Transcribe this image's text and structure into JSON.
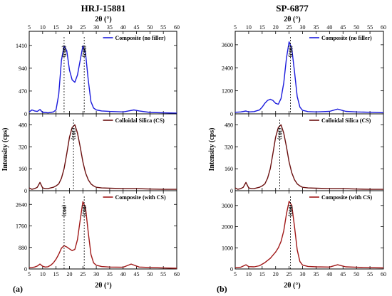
{
  "chart_data": [
    {
      "type": "line",
      "title": "HRJ-15881",
      "panel_label": "(a)",
      "xlabel": "2θ (°)",
      "ylabel": "Intensity (cps)",
      "xlim": [
        5,
        60
      ],
      "x_ticks": [
        5,
        10,
        15,
        20,
        25,
        30,
        35,
        40,
        45,
        50,
        55,
        60
      ],
      "subplots": [
        {
          "legend": "Composite (no filler)",
          "color": "#1a1adc",
          "ylim": [
            0,
            1700
          ],
          "y_ticks": [
            0,
            470,
            940,
            1410
          ],
          "x": [
            5,
            6,
            7,
            8,
            9,
            10,
            11,
            12,
            13,
            14,
            15,
            16,
            17,
            18,
            19,
            20,
            21,
            22,
            23,
            24,
            25,
            26,
            27,
            28,
            29,
            30,
            32,
            35,
            40,
            42,
            44,
            46,
            50,
            55,
            60
          ],
          "y": [
            40,
            80,
            60,
            50,
            90,
            30,
            30,
            20,
            30,
            40,
            80,
            400,
            1100,
            1400,
            1300,
            900,
            700,
            650,
            800,
            1100,
            1400,
            1250,
            700,
            250,
            120,
            80,
            60,
            50,
            40,
            60,
            80,
            60,
            30,
            20,
            15
          ],
          "peaks": [
            {
              "label": "(002)",
              "x": 18
            },
            {
              "label": "(002)",
              "x": 25.5
            }
          ]
        },
        {
          "legend": "Colloidal Silica (CS)",
          "color": "#6b1010",
          "ylim": [
            0,
            560
          ],
          "y_ticks": [
            0,
            160,
            320,
            480
          ],
          "x": [
            5,
            6,
            7,
            8,
            9,
            10,
            11,
            12,
            13,
            14,
            15,
            16,
            17,
            18,
            19,
            20,
            21,
            22,
            23,
            24,
            25,
            26,
            27,
            28,
            29,
            30,
            32,
            35,
            40,
            45,
            50,
            55,
            60
          ],
          "y": [
            20,
            10,
            15,
            25,
            60,
            20,
            15,
            15,
            20,
            25,
            35,
            50,
            90,
            160,
            270,
            390,
            460,
            480,
            420,
            320,
            210,
            130,
            80,
            50,
            35,
            25,
            20,
            18,
            15,
            15,
            12,
            10,
            10
          ],
          "peaks": [
            {
              "label": "(101)",
              "x": 21.5
            }
          ]
        },
        {
          "legend": "Composite (with CS)",
          "color": "#a01818",
          "ylim": [
            0,
            3200
          ],
          "y_ticks": [
            0,
            880,
            1760,
            2640
          ],
          "x": [
            5,
            6,
            7,
            8,
            9,
            10,
            11,
            12,
            13,
            14,
            15,
            16,
            17,
            18,
            19,
            20,
            21,
            22,
            23,
            24,
            25,
            26,
            27,
            28,
            29,
            30,
            32,
            35,
            40,
            43,
            46,
            50,
            55,
            60
          ],
          "y": [
            50,
            60,
            80,
            120,
            200,
            110,
            80,
            90,
            150,
            250,
            400,
            600,
            850,
            950,
            900,
            820,
            750,
            800,
            1200,
            2000,
            2750,
            2500,
            1500,
            600,
            250,
            150,
            100,
            80,
            70,
            200,
            80,
            60,
            40,
            30
          ],
          "peaks": [
            {
              "label": "(002)",
              "x": 18
            },
            {
              "label": "(002)",
              "x": 25.5
            }
          ]
        }
      ]
    },
    {
      "type": "line",
      "title": "SP-6877",
      "panel_label": "(b)",
      "xlabel": "2θ (°)",
      "ylabel": "Intensity (cps)",
      "xlim": [
        5,
        60
      ],
      "x_ticks": [
        5,
        10,
        15,
        20,
        25,
        30,
        35,
        40,
        45,
        50,
        55,
        60
      ],
      "subplots": [
        {
          "legend": "Composite (no filler)",
          "color": "#1a1adc",
          "ylim": [
            0,
            4300
          ],
          "y_ticks": [
            0,
            1200,
            2400,
            3600
          ],
          "x": [
            5,
            7,
            9,
            10,
            12,
            14,
            15,
            16,
            17,
            18,
            19,
            20,
            21,
            22,
            23,
            24,
            25,
            26,
            27,
            28,
            29,
            30,
            32,
            35,
            40,
            43,
            46,
            50,
            55,
            60
          ],
          "y": [
            80,
            100,
            150,
            100,
            120,
            200,
            350,
            550,
            700,
            760,
            700,
            550,
            500,
            800,
            1600,
            2900,
            3750,
            3400,
            2200,
            900,
            350,
            180,
            120,
            100,
            130,
            250,
            130,
            100,
            80,
            60
          ],
          "peaks": [
            {
              "label": "(002)",
              "x": 25.5
            }
          ]
        },
        {
          "legend": "Colloidal Silica (CS)",
          "color": "#6b1010",
          "ylim": [
            0,
            560
          ],
          "y_ticks": [
            0,
            160,
            320,
            480
          ],
          "x": [
            5,
            6,
            7,
            8,
            9,
            10,
            11,
            12,
            13,
            14,
            15,
            16,
            17,
            18,
            19,
            20,
            21,
            22,
            23,
            24,
            25,
            26,
            27,
            28,
            29,
            30,
            32,
            35,
            40,
            45,
            50,
            55,
            60
          ],
          "y": [
            20,
            10,
            15,
            25,
            60,
            20,
            15,
            15,
            20,
            25,
            35,
            50,
            90,
            160,
            270,
            390,
            460,
            480,
            420,
            320,
            210,
            130,
            80,
            50,
            35,
            25,
            20,
            18,
            15,
            15,
            12,
            10,
            10
          ],
          "peaks": [
            {
              "label": "(101)",
              "x": 21.5
            }
          ]
        },
        {
          "legend": "Composite (with CS)",
          "color": "#a01818",
          "ylim": [
            0,
            3700
          ],
          "y_ticks": [
            0,
            1000,
            2000,
            3000
          ],
          "x": [
            5,
            7,
            9,
            10,
            12,
            14,
            16,
            18,
            20,
            21,
            22,
            23,
            24,
            25,
            26,
            27,
            28,
            29,
            30,
            32,
            35,
            40,
            43,
            46,
            50,
            55,
            60
          ],
          "y": [
            60,
            80,
            200,
            110,
            100,
            150,
            300,
            500,
            800,
            1000,
            1300,
            1800,
            2600,
            3200,
            3000,
            2000,
            900,
            350,
            180,
            120,
            100,
            90,
            200,
            100,
            80,
            60,
            50
          ],
          "peaks": [
            {
              "label": "(002)",
              "x": 25.5
            }
          ]
        }
      ]
    }
  ]
}
